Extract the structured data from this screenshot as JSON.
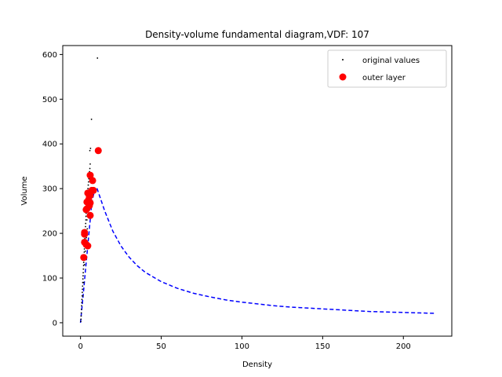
{
  "chart_data": {
    "type": "scatter",
    "title": "Density-volume fundamental diagram,VDF: 107",
    "xlabel": "Density",
    "ylabel": "Volume",
    "xlim": [
      -11,
      230
    ],
    "ylim": [
      -30,
      620
    ],
    "xticks": [
      0,
      50,
      100,
      150,
      200
    ],
    "yticks": [
      0,
      100,
      200,
      300,
      400,
      500,
      600
    ],
    "grid": false,
    "legend_position": "top-right",
    "colors": {
      "original": "#000000",
      "outer": "#ff0000",
      "fit": "#0000ff"
    },
    "series": [
      {
        "name": "original values",
        "kind": "scatter",
        "marker": "point",
        "points": [
          [
            0.2,
            3
          ],
          [
            0.3,
            8
          ],
          [
            0.4,
            15
          ],
          [
            0.5,
            22
          ],
          [
            0.6,
            30
          ],
          [
            0.7,
            38
          ],
          [
            0.8,
            45
          ],
          [
            0.9,
            52
          ],
          [
            1.0,
            60
          ],
          [
            1.1,
            68
          ],
          [
            1.2,
            75
          ],
          [
            1.3,
            82
          ],
          [
            1.4,
            90
          ],
          [
            1.5,
            98
          ],
          [
            1.6,
            105
          ],
          [
            1.7,
            112
          ],
          [
            1.8,
            120
          ],
          [
            1.9,
            128
          ],
          [
            2.0,
            135
          ],
          [
            2.1,
            142
          ],
          [
            2.2,
            150
          ],
          [
            2.3,
            158
          ],
          [
            2.4,
            165
          ],
          [
            2.5,
            172
          ],
          [
            2.6,
            180
          ],
          [
            2.7,
            188
          ],
          [
            2.8,
            195
          ],
          [
            2.9,
            200
          ],
          [
            3.0,
            208
          ],
          [
            3.1,
            215
          ],
          [
            3.2,
            222
          ],
          [
            3.3,
            230
          ],
          [
            3.4,
            238
          ],
          [
            3.5,
            245
          ],
          [
            3.6,
            250
          ],
          [
            3.7,
            258
          ],
          [
            3.8,
            265
          ],
          [
            3.9,
            272
          ],
          [
            4.0,
            280
          ],
          [
            4.2,
            288
          ],
          [
            4.4,
            295
          ],
          [
            4.6,
            300
          ],
          [
            4.8,
            308
          ],
          [
            5.0,
            315
          ],
          [
            5.2,
            322
          ],
          [
            5.4,
            330
          ],
          [
            5.6,
            338
          ],
          [
            5.8,
            345
          ],
          [
            6.0,
            355
          ],
          [
            6.5,
            300
          ],
          [
            1.5,
            60
          ],
          [
            2.0,
            90
          ],
          [
            2.5,
            130
          ],
          [
            3.0,
            160
          ],
          [
            3.5,
            200
          ],
          [
            4.0,
            230
          ],
          [
            4.5,
            260
          ],
          [
            5.0,
            280
          ],
          [
            3.2,
            180
          ],
          [
            2.8,
            150
          ],
          [
            5.8,
            385
          ],
          [
            6.2,
            390
          ],
          [
            6.8,
            455
          ],
          [
            10.5,
            592
          ],
          [
            4.8,
            250
          ],
          [
            4.2,
            210
          ],
          [
            3.6,
            190
          ],
          [
            6.0,
            270
          ],
          [
            5.5,
            240
          ],
          [
            7.0,
            290
          ]
        ]
      },
      {
        "name": "outer layer",
        "kind": "scatter",
        "marker": "circle",
        "points": [
          [
            11,
            385
          ],
          [
            6,
            330
          ],
          [
            7.5,
            318
          ],
          [
            8,
            296
          ],
          [
            7,
            296
          ],
          [
            6,
            285
          ],
          [
            5.5,
            283
          ],
          [
            4.5,
            290
          ],
          [
            5,
            275
          ],
          [
            4,
            270
          ],
          [
            6,
            268
          ],
          [
            5.5,
            262
          ],
          [
            4,
            255
          ],
          [
            3.5,
            253
          ],
          [
            6,
            240
          ],
          [
            2.5,
            202
          ],
          [
            2.5,
            198
          ],
          [
            2.5,
            180
          ],
          [
            3.5,
            175
          ],
          [
            4.5,
            172
          ],
          [
            2,
            146
          ]
        ]
      },
      {
        "name": "",
        "kind": "line",
        "style": "dashed",
        "points": [
          [
            0,
            0
          ],
          [
            1,
            38
          ],
          [
            2,
            76
          ],
          [
            3,
            115
          ],
          [
            4,
            153
          ],
          [
            5,
            191
          ],
          [
            6,
            230
          ],
          [
            7,
            268
          ],
          [
            8,
            285
          ],
          [
            9,
            300
          ],
          [
            10,
            303
          ],
          [
            15,
            250
          ],
          [
            20,
            205
          ],
          [
            25,
            172
          ],
          [
            30,
            147
          ],
          [
            35,
            128
          ],
          [
            40,
            113
          ],
          [
            50,
            92
          ],
          [
            60,
            77
          ],
          [
            70,
            66
          ],
          [
            80,
            58
          ],
          [
            90,
            51
          ],
          [
            100,
            46
          ],
          [
            110,
            42
          ],
          [
            120,
            38
          ],
          [
            130,
            35
          ],
          [
            140,
            33
          ],
          [
            150,
            31
          ],
          [
            160,
            29
          ],
          [
            170,
            27
          ],
          [
            180,
            25
          ],
          [
            190,
            24
          ],
          [
            200,
            23
          ],
          [
            210,
            22
          ],
          [
            220,
            21
          ]
        ]
      }
    ]
  }
}
